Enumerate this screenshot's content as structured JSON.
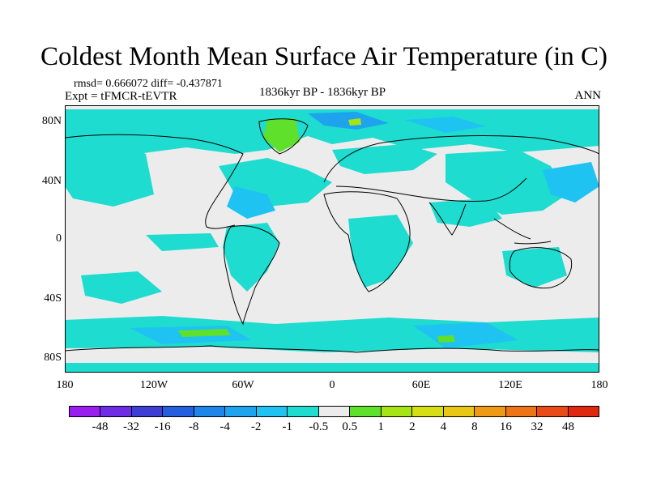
{
  "title": "Coldest Month Mean Surface Air Temperature (in C)",
  "stats": {
    "rmsd_line": "rmsd= 0.666072 diff= -0.437871",
    "expt_line": "Expt = tFMCR-tEVTR"
  },
  "period": "1836kyr BP - 1836kyr BP",
  "season": "ANN",
  "y_ticks": [
    "80N",
    "40N",
    "0",
    "40S",
    "80S"
  ],
  "x_ticks": [
    "180",
    "120W",
    "60W",
    "0",
    "60E",
    "120E",
    "180"
  ],
  "colorbar": {
    "colors": [
      "#9b1ef0",
      "#6e2ce6",
      "#3f3ed4",
      "#245fe0",
      "#1e86e8",
      "#1ea4ee",
      "#1ec3f2",
      "#1edccf",
      "#ececec",
      "#5fe02a",
      "#a6e414",
      "#d6de14",
      "#e8c814",
      "#ee9a16",
      "#ee7418",
      "#ea4a16",
      "#e02810"
    ],
    "labels": [
      "-48",
      "-32",
      "-16",
      "-8",
      "-4",
      "-2",
      "-1",
      "-0.5",
      "0.5",
      "1",
      "2",
      "4",
      "8",
      "16",
      "32",
      "48"
    ]
  },
  "colors": {
    "background_field": "#ececec",
    "coast": "#000000",
    "cyan": "#1edccf",
    "light_blue": "#1ec3f2",
    "blue": "#1ea4ee",
    "green": "#5fe02a",
    "yellow_green": "#a6e414"
  }
}
